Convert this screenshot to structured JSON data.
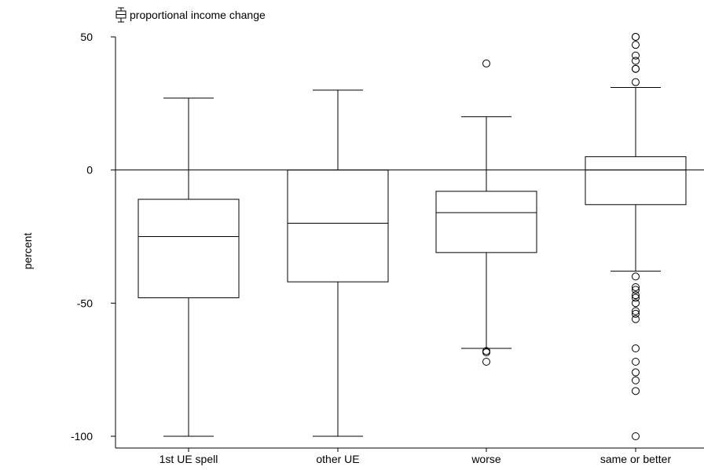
{
  "chart_data": {
    "type": "box",
    "legend": {
      "label": "proportional income change",
      "position": "top-left"
    },
    "ylabel": "percent",
    "xlabel": "",
    "ylim": [
      -100,
      50
    ],
    "yticks": [
      50,
      0,
      -50,
      -100
    ],
    "reference_line": 0,
    "grid": false,
    "categories": [
      "1st UE spell",
      "other UE",
      "worse",
      "same or better"
    ],
    "boxes": [
      {
        "whisker_low": -100,
        "q1": -48,
        "median": -25,
        "q3": -11,
        "whisker_high": 27,
        "outliers": []
      },
      {
        "whisker_low": -100,
        "q1": -42,
        "median": -20,
        "q3": 0,
        "whisker_high": 30,
        "outliers": []
      },
      {
        "whisker_low": -67,
        "q1": -31,
        "median": -16,
        "q3": -8,
        "whisker_high": 20,
        "outliers": [
          40,
          -68,
          -68.5,
          -72
        ]
      },
      {
        "whisker_low": -38,
        "q1": -13,
        "median": 0,
        "q3": 5,
        "whisker_high": 31,
        "outliers": [
          50,
          50,
          47,
          43,
          41,
          38,
          38,
          33,
          -40,
          -44,
          -45,
          -47,
          -48,
          -50,
          -53,
          -54,
          -56,
          -67,
          -72,
          -76,
          -79,
          -83,
          -100
        ]
      }
    ]
  }
}
